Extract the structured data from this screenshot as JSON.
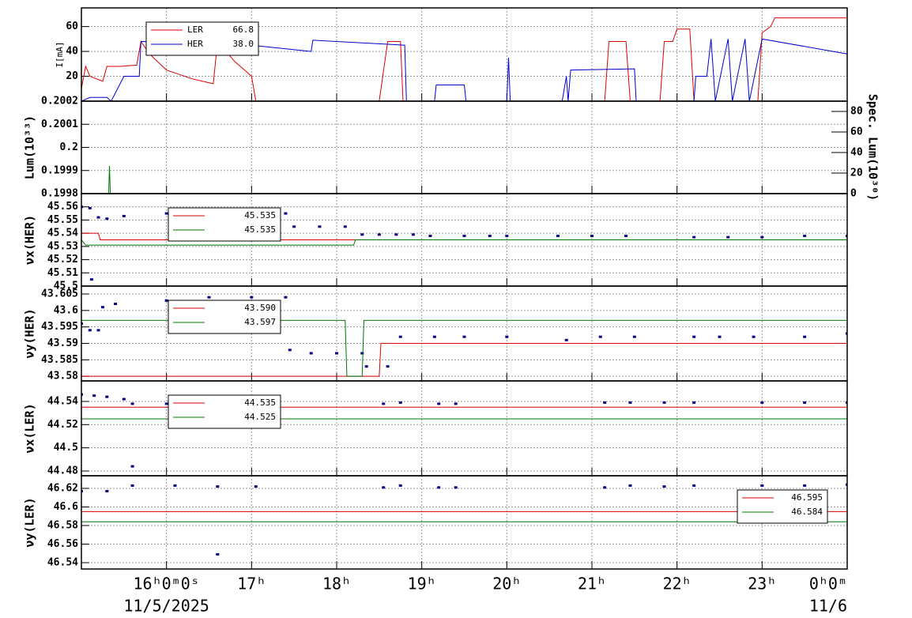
{
  "chart_data": [
    {
      "type": "line",
      "ylabel": "I[mA]",
      "ylim": [
        0,
        75
      ],
      "yticks": [
        20,
        40,
        60
      ],
      "grid": true,
      "legend": "upper-left",
      "series": [
        {
          "name": "LER",
          "legend_value": "66.8",
          "color": "#dd0000",
          "type": "line",
          "x": [
            15.0,
            15.05,
            15.1,
            15.25,
            15.3,
            15.45,
            15.65,
            15.7,
            15.8,
            16.0,
            16.3,
            16.55,
            16.6,
            16.8,
            17.0,
            17.05,
            18.5,
            18.6,
            18.75,
            18.78,
            21.15,
            21.2,
            21.4,
            21.45,
            21.8,
            21.85,
            21.95,
            22.0,
            22.15,
            22.2,
            22.95,
            23.0,
            23.1,
            23.15,
            24.0
          ],
          "values": [
            10,
            28,
            20,
            16,
            28,
            28,
            29,
            48,
            38,
            25,
            18,
            14,
            48,
            32,
            20,
            0,
            0,
            48,
            48,
            0,
            0,
            48,
            48,
            0,
            0,
            48,
            48,
            58,
            58,
            0,
            0,
            55,
            60,
            67,
            67
          ]
        },
        {
          "name": "HER",
          "legend_value": "38.0",
          "color": "#0000cc",
          "type": "line",
          "x": [
            15.0,
            15.1,
            15.3,
            15.35,
            15.5,
            15.68,
            15.7,
            16.6,
            16.65,
            17.0,
            17.7,
            17.72,
            18.8,
            18.82,
            19.15,
            19.17,
            19.5,
            19.52,
            20.0,
            20.02,
            20.04,
            20.65,
            20.7,
            20.72,
            20.75,
            21.5,
            21.52,
            22.2,
            22.22,
            22.35,
            22.4,
            22.45,
            22.6,
            22.65,
            22.8,
            22.85,
            23.0,
            24.0
          ],
          "values": [
            0,
            3,
            3,
            0,
            20,
            20,
            48,
            47,
            45,
            45,
            40,
            49,
            45,
            0,
            0,
            13,
            13,
            0,
            0,
            35,
            0,
            0,
            20,
            0,
            25,
            26,
            0,
            0,
            20,
            20,
            50,
            0,
            50,
            0,
            50,
            0,
            50,
            38
          ]
        }
      ]
    },
    {
      "type": "line",
      "ylabel": "Lum(10³³)",
      "y2label": "Spec. Lum(10³⁰)",
      "ylim": [
        0.1998,
        0.2002
      ],
      "yticks": [
        0.1998,
        0.1999,
        0.2,
        0.2001,
        0.2002
      ],
      "y2lim": [
        0,
        90
      ],
      "y2ticks": [
        0,
        20,
        40,
        60,
        80
      ],
      "grid": true,
      "series": [
        {
          "color": "#007700",
          "type": "line",
          "x": [
            15.3,
            15.32,
            15.33,
            15.34
          ],
          "values": [
            0.1998,
            0.1998,
            0.19992,
            0.1998
          ]
        }
      ]
    },
    {
      "type": "scatter",
      "ylabel": "νx(HER)",
      "ylim": [
        45.5,
        45.57
      ],
      "yticks": [
        45.5,
        45.51,
        45.52,
        45.53,
        45.54,
        45.55,
        45.56
      ],
      "grid": true,
      "legend": "upper-left",
      "series": [
        {
          "color": "#000080",
          "type": "scatter",
          "x": [
            15.0,
            15.1,
            15.2,
            15.3,
            15.5,
            16.0,
            16.5,
            17.0,
            17.4,
            17.5,
            17.8,
            18.1,
            18.3,
            18.5,
            18.7,
            18.9,
            19.1,
            19.5,
            19.8,
            20.0,
            20.6,
            21.0,
            21.4,
            22.2,
            22.6,
            23.0,
            23.5,
            24.0,
            15.12
          ],
          "values": [
            45.56,
            45.559,
            45.552,
            45.551,
            45.553,
            45.555,
            45.555,
            45.555,
            45.555,
            45.545,
            45.545,
            45.545,
            45.539,
            45.539,
            45.539,
            45.539,
            45.538,
            45.538,
            45.538,
            45.538,
            45.538,
            45.538,
            45.538,
            45.537,
            45.537,
            45.537,
            45.538,
            45.538,
            45.505
          ]
        },
        {
          "legend_value": "45.535",
          "color": "#dd0000",
          "type": "line",
          "x": [
            15.0,
            15.2,
            15.22,
            24.0
          ],
          "values": [
            45.54,
            45.54,
            45.535,
            45.535
          ]
        },
        {
          "legend_value": "45.535",
          "color": "#007700",
          "type": "line",
          "x": [
            15.0,
            15.05,
            18.2,
            18.22,
            24.0
          ],
          "values": [
            45.535,
            45.531,
            45.531,
            45.535,
            45.535
          ]
        }
      ]
    },
    {
      "type": "scatter",
      "ylabel": "νy(HER)",
      "ylim": [
        43.5786,
        43.6074
      ],
      "yticks": [
        43.58,
        43.585,
        43.59,
        43.595,
        43.6,
        43.605
      ],
      "grid": true,
      "legend": "upper-left",
      "series": [
        {
          "color": "#000080",
          "type": "scatter",
          "x": [
            15.0,
            15.1,
            15.2,
            15.25,
            15.4,
            16.0,
            16.5,
            17.0,
            17.4,
            17.45,
            17.7,
            18.0,
            18.3,
            18.35,
            18.6,
            18.75,
            19.15,
            19.5,
            20.0,
            20.7,
            21.1,
            21.5,
            22.2,
            22.5,
            22.9,
            23.5,
            24.0
          ],
          "values": [
            43.596,
            43.594,
            43.594,
            43.601,
            43.602,
            43.603,
            43.604,
            43.604,
            43.604,
            43.588,
            43.587,
            43.587,
            43.587,
            43.583,
            43.583,
            43.592,
            43.592,
            43.592,
            43.592,
            43.591,
            43.592,
            43.592,
            43.592,
            43.592,
            43.592,
            43.592,
            43.593
          ]
        },
        {
          "legend_value": "43.590",
          "color": "#dd0000",
          "type": "line",
          "x": [
            15.0,
            18.5,
            18.52,
            24.0
          ],
          "values": [
            43.58,
            43.58,
            43.59,
            43.59
          ]
        },
        {
          "legend_value": "43.597",
          "color": "#007700",
          "type": "line",
          "x": [
            15.0,
            18.1,
            18.12,
            18.3,
            18.32,
            24.0
          ],
          "values": [
            43.597,
            43.597,
            43.58,
            43.58,
            43.597,
            43.597
          ]
        }
      ]
    },
    {
      "type": "scatter",
      "ylabel": "νx(LER)",
      "ylim": [
        44.4759,
        44.5577
      ],
      "yticks": [
        44.48,
        44.5,
        44.52,
        44.54
      ],
      "grid": true,
      "legend": "upper-left",
      "series": [
        {
          "color": "#000080",
          "type": "scatter",
          "x": [
            15.0,
            15.15,
            15.3,
            15.5,
            15.6,
            16.0,
            15.6,
            18.55,
            18.75,
            19.2,
            19.4,
            21.15,
            21.45,
            21.85,
            22.2,
            23.0,
            23.5,
            24.0
          ],
          "values": [
            44.546,
            44.545,
            44.544,
            44.542,
            44.538,
            44.538,
            44.484,
            44.538,
            44.539,
            44.538,
            44.538,
            44.539,
            44.539,
            44.539,
            44.539,
            44.539,
            44.539,
            44.539
          ]
        },
        {
          "legend_value": "44.535",
          "color": "#dd0000",
          "type": "line",
          "x": [
            15.0,
            24.0
          ],
          "values": [
            44.535,
            44.535
          ]
        },
        {
          "legend_value": "44.525",
          "color": "#007700",
          "type": "line",
          "x": [
            15.0,
            24.0
          ],
          "values": [
            44.525,
            44.525
          ]
        }
      ]
    },
    {
      "type": "scatter",
      "ylabel": "νy(LER)",
      "ylim": [
        46.5332,
        46.6336
      ],
      "yticks": [
        46.54,
        46.56,
        46.58,
        46.6,
        46.62
      ],
      "grid": true,
      "legend": "upper-right",
      "xlim": [
        15,
        24
      ],
      "xticks": [
        {
          "value": 16,
          "label": "16ʰ0ᵐ0ˢ"
        },
        {
          "value": 17,
          "label": "17ʰ"
        },
        {
          "value": 18,
          "label": "18ʰ"
        },
        {
          "value": 19,
          "label": "19ʰ"
        },
        {
          "value": 20,
          "label": "20ʰ"
        },
        {
          "value": 21,
          "label": "21ʰ"
        },
        {
          "value": 22,
          "label": "22ʰ"
        },
        {
          "value": 23,
          "label": "23ʰ"
        },
        {
          "value": 24,
          "label": "0ʰ0ᵐ"
        }
      ],
      "xdates": [
        {
          "value": 16,
          "label": "11/5/2025"
        },
        {
          "value": 24,
          "label": "11/6"
        }
      ],
      "series": [
        {
          "color": "#000080",
          "type": "scatter",
          "x": [
            15.0,
            15.3,
            15.6,
            16.1,
            16.6,
            17.05,
            16.6,
            18.55,
            18.75,
            19.2,
            19.4,
            21.15,
            21.45,
            21.85,
            22.2,
            23.0,
            23.5,
            24.0
          ],
          "values": [
            46.617,
            46.617,
            46.623,
            46.623,
            46.622,
            46.622,
            46.549,
            46.621,
            46.623,
            46.621,
            46.621,
            46.621,
            46.623,
            46.622,
            46.623,
            46.623,
            46.623,
            46.624
          ]
        },
        {
          "legend_value": "46.595",
          "color": "#dd0000",
          "type": "line",
          "x": [
            15.0,
            24.0
          ],
          "values": [
            46.595,
            46.595
          ]
        },
        {
          "legend_value": "46.584",
          "color": "#007700",
          "type": "line",
          "x": [
            15.0,
            24.0
          ],
          "values": [
            46.584,
            46.584
          ]
        }
      ]
    }
  ]
}
